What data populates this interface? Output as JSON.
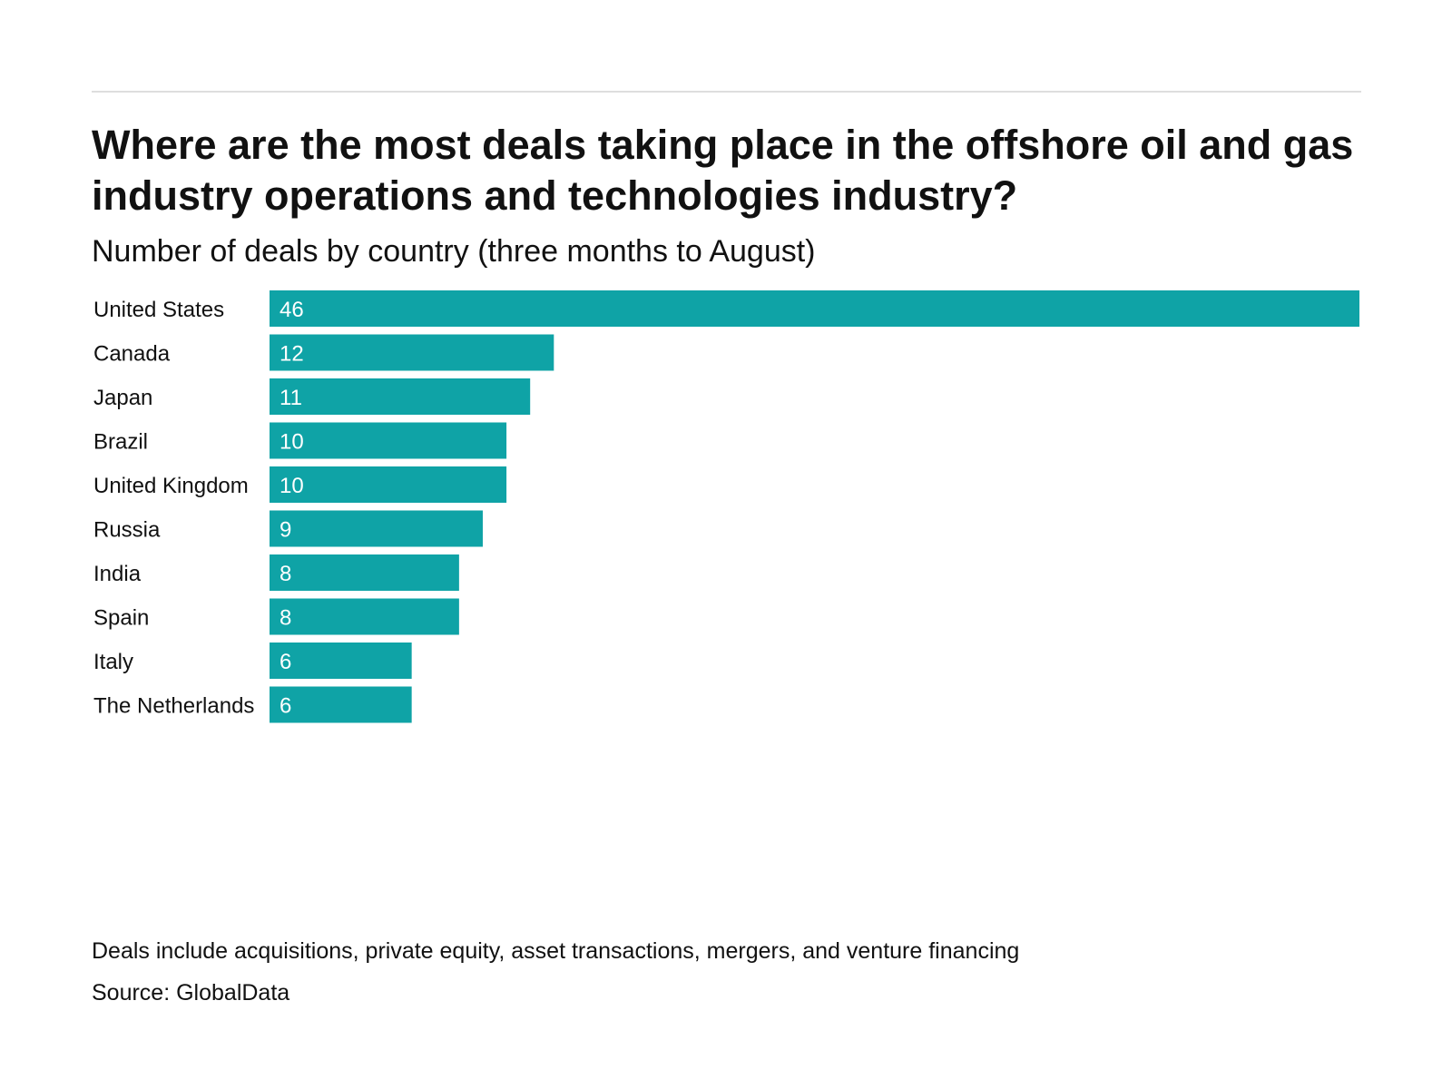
{
  "chart_data": {
    "type": "bar",
    "orientation": "horizontal",
    "title": "Where are the most deals taking place in the offshore oil and gas industry operations and technologies industry?",
    "subtitle": "Number of deals by country (three months to August)",
    "categories": [
      "United States",
      "Canada",
      "Japan",
      "Brazil",
      "United Kingdom",
      "Russia",
      "India",
      "Spain",
      "Italy",
      "The Netherlands"
    ],
    "values": [
      46,
      12,
      11,
      10,
      10,
      9,
      8,
      8,
      6,
      6
    ],
    "xlim": [
      0,
      46
    ],
    "grid": false,
    "data_labels": true,
    "bar_color": "#0fa3a6"
  },
  "footer": {
    "note": "Deals include acquisitions, private equity, asset transactions, mergers, and venture financing",
    "source": "Source: GlobalData"
  }
}
